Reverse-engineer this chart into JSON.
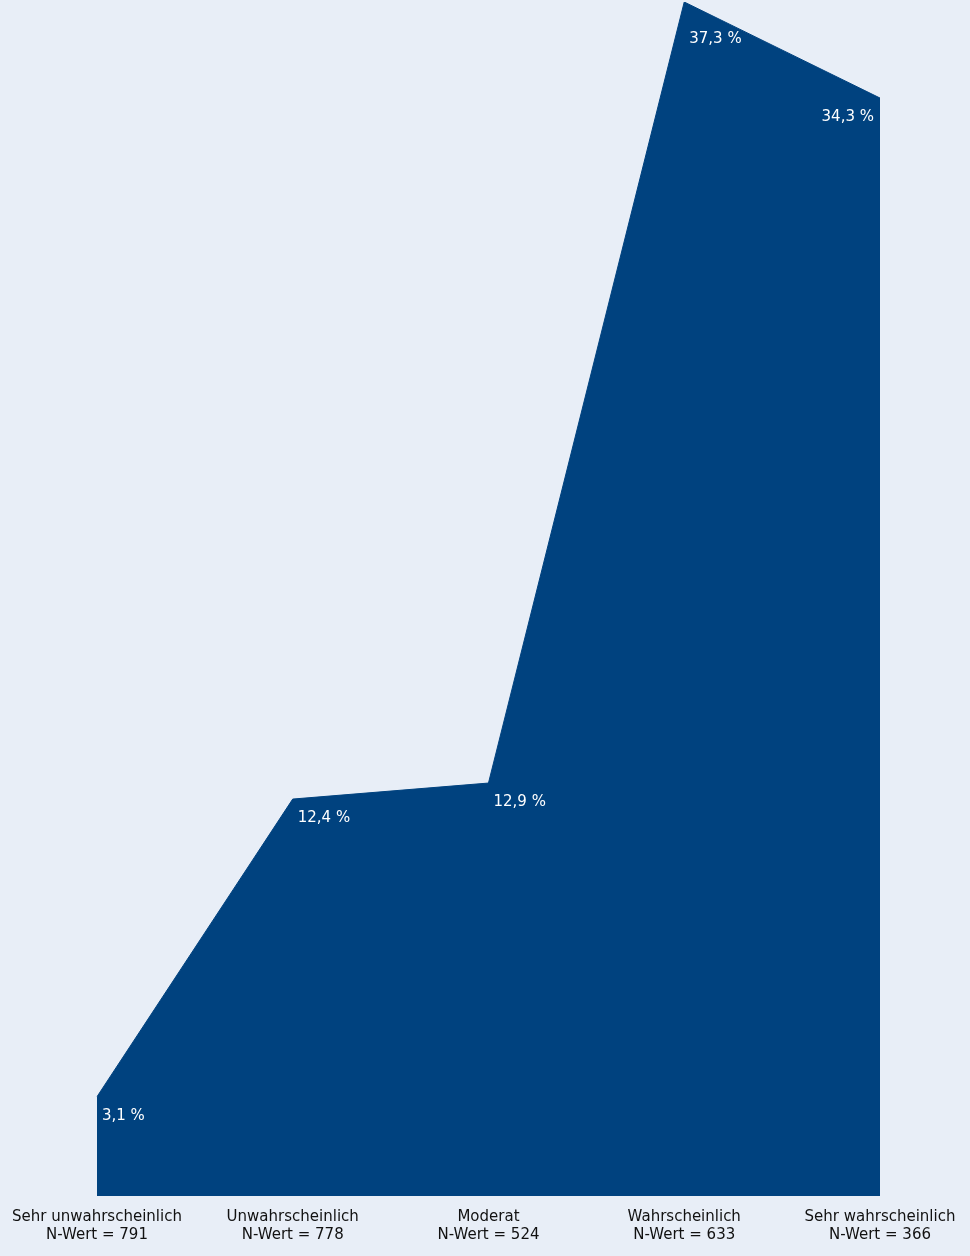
{
  "chart_data": {
    "type": "area",
    "categories": [
      "Sehr unwahrscheinlich\nN-Wert = 791",
      "Unwahrscheinlich\nN-Wert = 778",
      "Moderat\nN-Wert = 524",
      "Wahrscheinlich\nN-Wert = 633",
      "Sehr wahrscheinlich\nN-Wert = 366"
    ],
    "series": [
      {
        "color": "#00427f",
        "values": [
          3.1,
          12.4,
          12.9,
          37.3,
          34.3
        ],
        "value_labels": [
          "3,1 %",
          "12,4 %",
          "12,9 %",
          "37,3 %",
          "34,3 %"
        ]
      }
    ],
    "grid": false,
    "legend": false
  }
}
